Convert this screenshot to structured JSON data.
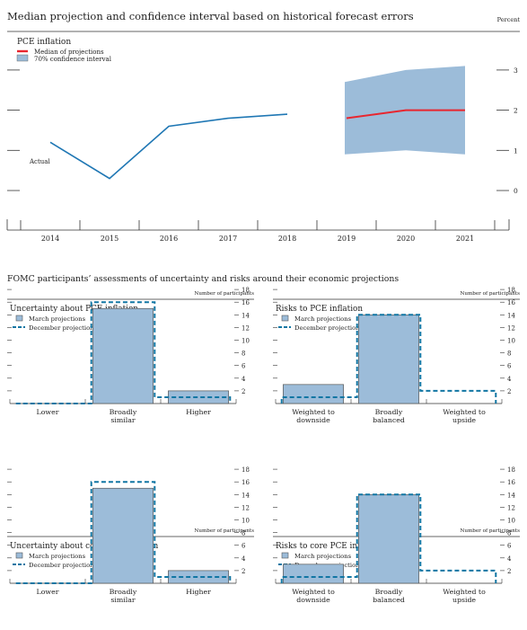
{
  "top": {
    "title": "Median projection and confidence interval based on historical forecast errors",
    "unit_label": "Percent"
  },
  "bottom_title": "FOMC participants’ assessments of uncertainty and risks around their economic projections",
  "colors": {
    "actual_line": "#1f77b4",
    "median_line": "#e8262f",
    "interval_fill": "#9cbcd9",
    "bar_fill": "#9cbcd9",
    "bar_stroke": "#555555",
    "december_line": "#1176a3",
    "axis": "#333333"
  },
  "chart_data": [
    {
      "type": "line",
      "title": "PCE inflation",
      "ylabel": "Percent",
      "ylim": [
        -0.5,
        3.5
      ],
      "yticks": [
        0,
        1,
        2,
        3
      ],
      "x_categories": [
        "2014",
        "2015",
        "2016",
        "2017",
        "2018",
        "2019",
        "2020",
        "2021"
      ],
      "series": [
        {
          "name": "Actual",
          "x": [
            "2014",
            "2015",
            "2016",
            "2017",
            "2018"
          ],
          "values": [
            1.2,
            0.3,
            1.6,
            1.8,
            1.9
          ]
        },
        {
          "name": "Median of projections",
          "x": [
            "2019",
            "2020",
            "2021"
          ],
          "values": [
            1.8,
            2.0,
            2.0
          ]
        }
      ],
      "interval": {
        "name": "70% confidence interval",
        "x": [
          "2019",
          "2020",
          "2021"
        ],
        "low": [
          0.9,
          1.0,
          0.9
        ],
        "high": [
          2.7,
          3.0,
          3.1
        ]
      },
      "legend": [
        "Median of projections",
        "70% confidence interval"
      ],
      "annotations": [
        "Actual"
      ],
      "legend_position": "top-left"
    },
    {
      "type": "bar",
      "title": "Uncertainty about PCE inflation",
      "ylabel": "Number of participants",
      "ylim": [
        0,
        19
      ],
      "yticks": [
        2,
        4,
        6,
        8,
        10,
        12,
        14,
        16,
        18
      ],
      "categories": [
        "Lower",
        "Broadly similar",
        "Higher"
      ],
      "series": [
        {
          "name": "March projections",
          "values": [
            0,
            15,
            2
          ]
        },
        {
          "name": "December projections",
          "values": [
            0,
            16,
            1
          ]
        }
      ],
      "legend_position": "top-left"
    },
    {
      "type": "bar",
      "title": "Risks to PCE inflation",
      "ylabel": "Number of participants",
      "ylim": [
        0,
        19
      ],
      "yticks": [
        2,
        4,
        6,
        8,
        10,
        12,
        14,
        16,
        18
      ],
      "categories": [
        "Weighted to downside",
        "Broadly balanced",
        "Weighted to upside"
      ],
      "series": [
        {
          "name": "March projections",
          "values": [
            3,
            14,
            0
          ]
        },
        {
          "name": "December projections",
          "values": [
            1,
            14,
            2
          ]
        }
      ],
      "legend_position": "top-left"
    },
    {
      "type": "bar",
      "title": "Uncertainty about core PCE inflation",
      "ylabel": "Number of participants",
      "ylim": [
        0,
        19
      ],
      "yticks": [
        2,
        4,
        6,
        8,
        10,
        12,
        14,
        16,
        18
      ],
      "categories": [
        "Lower",
        "Broadly similar",
        "Higher"
      ],
      "series": [
        {
          "name": "March projections",
          "values": [
            0,
            15,
            2
          ]
        },
        {
          "name": "December projections",
          "values": [
            0,
            16,
            1
          ]
        }
      ],
      "legend_position": "top-left"
    },
    {
      "type": "bar",
      "title": "Risks to core PCE inflation",
      "ylabel": "Number of participants",
      "ylim": [
        0,
        19
      ],
      "yticks": [
        2,
        4,
        6,
        8,
        10,
        12,
        14,
        16,
        18
      ],
      "categories": [
        "Weighted to downside",
        "Broadly balanced",
        "Weighted to upside"
      ],
      "series": [
        {
          "name": "March projections",
          "values": [
            3,
            14,
            0
          ]
        },
        {
          "name": "December projections",
          "values": [
            1,
            14,
            2
          ]
        }
      ],
      "legend_position": "top-left"
    }
  ]
}
